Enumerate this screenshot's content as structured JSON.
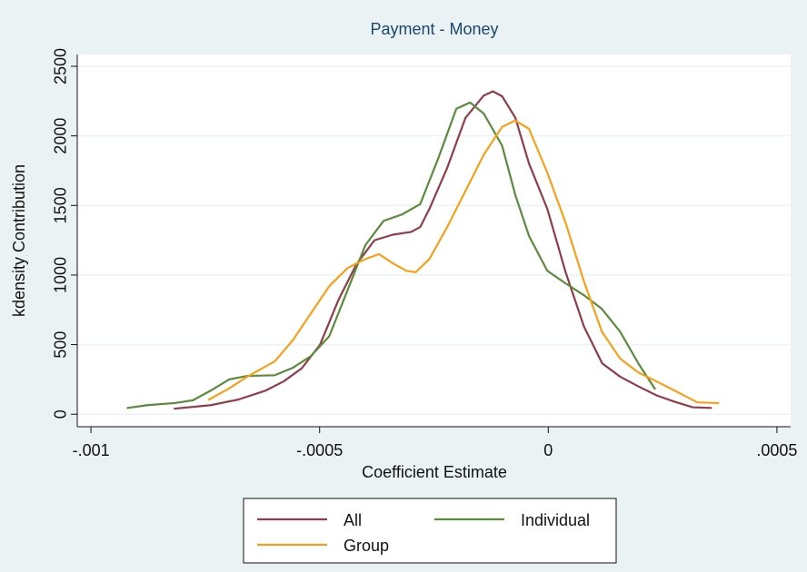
{
  "chart_data": {
    "type": "line",
    "title": "Payment - Money",
    "xlabel": "Coefficient Estimate",
    "ylabel": "kdensity Contribution",
    "xlim": [
      -0.00103,
      0.00053
    ],
    "ylim": [
      -90,
      2585
    ],
    "xticks": [
      {
        "value": -0.001,
        "label": "-.001"
      },
      {
        "value": -0.0005,
        "label": "-.0005"
      },
      {
        "value": 0,
        "label": "0"
      },
      {
        "value": 0.0005,
        "label": ".0005"
      }
    ],
    "yticks": [
      0,
      500,
      1000,
      1500,
      2000,
      2500
    ],
    "grid": true,
    "legend": "bottom",
    "series": [
      {
        "name": "All",
        "color": "#903c4a",
        "x": [
          -0.000817,
          -0.000738,
          -0.000678,
          -0.000618,
          -0.000579,
          -0.000539,
          -0.000499,
          -0.000459,
          -0.000419,
          -0.00038,
          -0.00034,
          -0.0003,
          -0.00028,
          -0.00026,
          -0.000221,
          -0.000181,
          -0.000141,
          -0.000121,
          -0.000101,
          -7.2e-05,
          -4.2e-05,
          -2e-06,
          3.8e-05,
          7.8e-05,
          0.000118,
          0.000157,
          0.000197,
          0.000237,
          0.000276,
          0.000316,
          0.000356
        ],
        "values": [
          40,
          65,
          105,
          170,
          235,
          330,
          500,
          820,
          1080,
          1250,
          1290,
          1310,
          1345,
          1475,
          1770,
          2130,
          2290,
          2320,
          2285,
          2130,
          1800,
          1475,
          1020,
          630,
          365,
          270,
          200,
          135,
          90,
          50,
          45
        ]
      },
      {
        "name": "Individual",
        "color": "#5b8c3c",
        "x": [
          -0.00092,
          -0.000877,
          -0.000817,
          -0.000777,
          -0.000738,
          -0.000698,
          -0.000658,
          -0.000598,
          -0.000559,
          -0.000519,
          -0.000479,
          -0.000439,
          -0.0004,
          -0.00036,
          -0.00032,
          -0.00028,
          -0.000241,
          -0.000201,
          -0.000171,
          -0.000141,
          -0.000101,
          -7.2e-05,
          -4.2e-05,
          -2e-06,
          3.8e-05,
          7.8e-05,
          0.000117,
          0.000157,
          0.000197,
          0.000233
        ],
        "values": [
          45,
          65,
          80,
          100,
          170,
          250,
          275,
          280,
          333,
          418,
          560,
          890,
          1215,
          1390,
          1435,
          1510,
          1835,
          2195,
          2240,
          2160,
          1930,
          1575,
          1280,
          1030,
          940,
          855,
          757,
          594,
          365,
          183
        ]
      },
      {
        "name": "Group",
        "color": "#f8a01a",
        "x": [
          -0.000742,
          -0.000698,
          -0.000658,
          -0.000598,
          -0.000559,
          -0.000519,
          -0.000479,
          -0.000439,
          -0.0004,
          -0.00037,
          -0.00034,
          -0.00031,
          -0.00029,
          -0.00026,
          -0.000221,
          -0.000181,
          -0.000141,
          -0.000101,
          -7.2e-05,
          -4.2e-05,
          -2e-06,
          3.8e-05,
          7.8e-05,
          0.000117,
          0.000157,
          0.000197,
          0.000237,
          0.000276,
          0.000326,
          0.000372
        ],
        "values": [
          105,
          185,
          270,
          380,
          530,
          725,
          920,
          1050,
          1115,
          1150,
          1085,
          1030,
          1020,
          1115,
          1345,
          1605,
          1865,
          2065,
          2110,
          2050,
          1735,
          1375,
          955,
          595,
          400,
          300,
          235,
          170,
          85,
          80
        ]
      }
    ]
  }
}
